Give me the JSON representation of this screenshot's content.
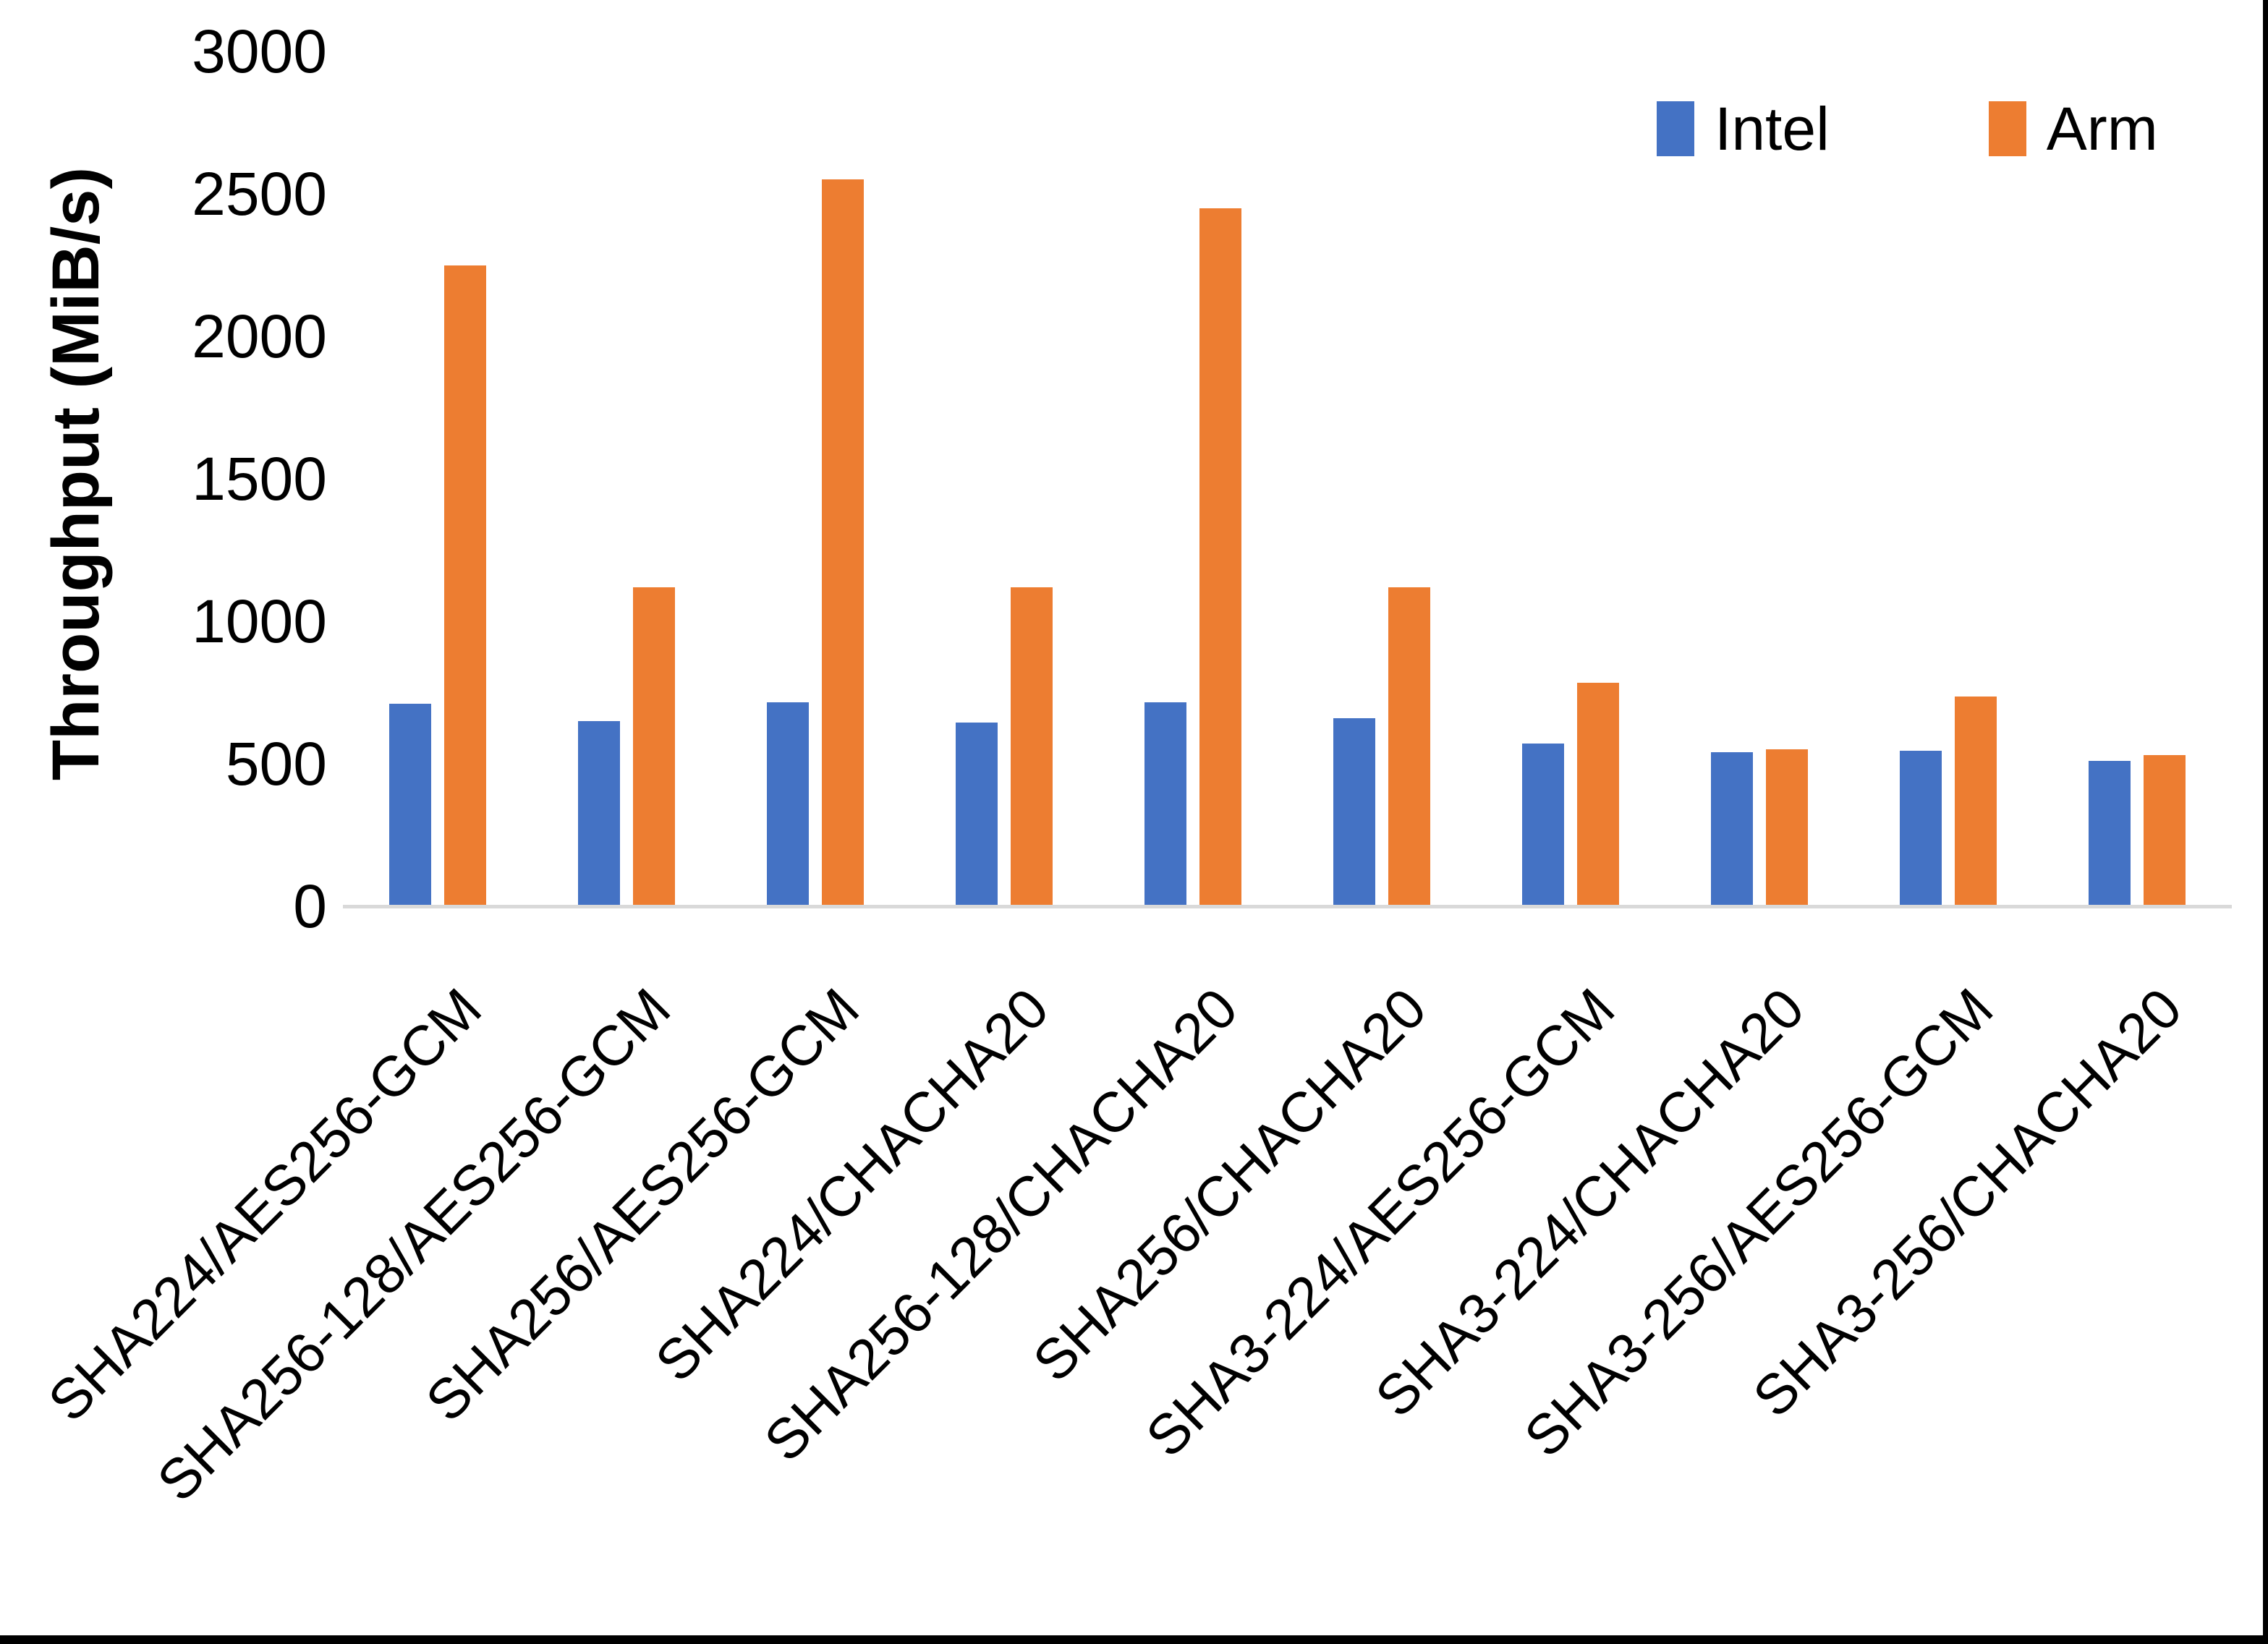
{
  "figure": {
    "background_color": "#FFFFFF",
    "frame_color": "#000000"
  },
  "chart_data": {
    "type": "bar",
    "title": "",
    "xlabel": "",
    "ylabel": "Throughput (MiB/s)",
    "ylim": [
      0,
      3000
    ],
    "yticks": [
      0,
      500,
      1000,
      1500,
      2000,
      2500,
      3000
    ],
    "grid": false,
    "legend_position": "top-right",
    "axis_line_color": "#D9D9D9",
    "text_color": "#000000",
    "categories": [
      "SHA224/AES256-GCM",
      "SHA256-128/AES256-GCM",
      "SHA256/AES256-GCM",
      "SHA224/CHACHA20",
      "SHA256-128/CHACHA20",
      "SHA256/CHACHA20",
      "SHA3-224/AES256-GCM",
      "SHA3-224/CHACHA20",
      "SHA3-256/AES256-GCM",
      "SHA3-256/CHACHA20"
    ],
    "series": [
      {
        "name": "Intel",
        "color": "#4472C4",
        "values": [
          710,
          650,
          715,
          645,
          715,
          660,
          570,
          540,
          545,
          510
        ]
      },
      {
        "name": "Arm",
        "color": "#ED7D31",
        "values": [
          2250,
          1120,
          2550,
          1120,
          2450,
          1120,
          785,
          550,
          735,
          530
        ]
      }
    ]
  }
}
